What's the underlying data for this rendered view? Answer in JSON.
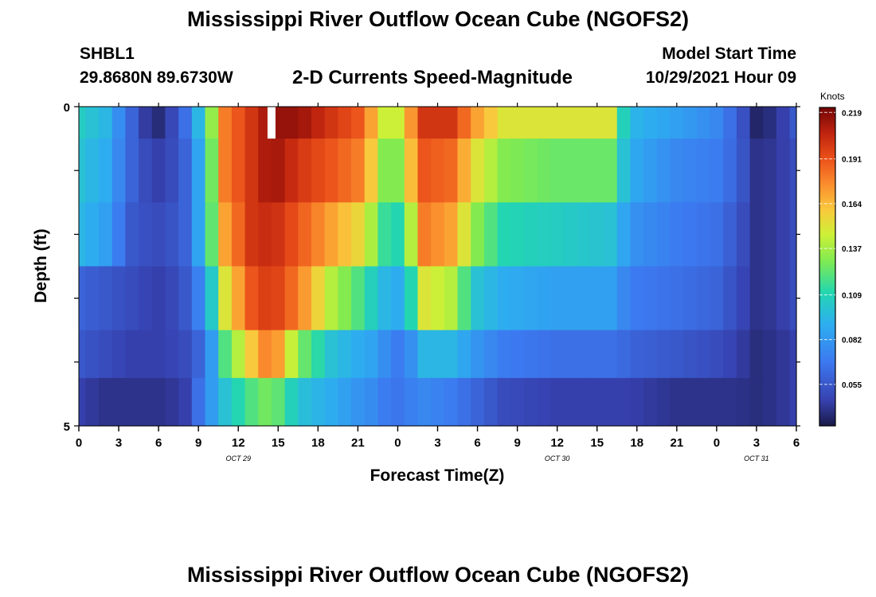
{
  "header": {
    "title": "Mississippi River Outflow Ocean Cube (NGOFS2)",
    "station": "SHBL1",
    "coordinates": "29.8680N  89.6730W",
    "subtitle": "2-D Currents Speed-Magnitude",
    "model_label": "Model Start Time",
    "model_start": "10/29/2021 Hour 09"
  },
  "footer": {
    "title": "Mississippi River Outflow Ocean Cube (NGOFS2)"
  },
  "chart_data": {
    "type": "heatmap",
    "title": "2-D Currents Speed-Magnitude",
    "xlabel": "Forecast Time(Z)",
    "ylabel": "Depth (ft)",
    "x_tick_labels": [
      "0",
      "3",
      "6",
      "9",
      "12",
      "15",
      "18",
      "21",
      "0",
      "3",
      "6",
      "9",
      "12",
      "15",
      "18",
      "21",
      "0",
      "3",
      "6"
    ],
    "date_labels": [
      {
        "label": "OCT 29",
        "hour": 12
      },
      {
        "label": "OCT 30",
        "hour": 36
      },
      {
        "label": "OCT 31",
        "hour": 51
      }
    ],
    "x_range_hours": [
      0,
      54
    ],
    "y_ticks": [
      "0",
      "5"
    ],
    "ylim": [
      0,
      5
    ],
    "colorbar": {
      "label": "Knots",
      "ticks": [
        "0.219",
        "0.191",
        "0.164",
        "0.137",
        "0.109",
        "0.082",
        "0.055"
      ],
      "range": [
        0.03,
        0.222
      ]
    },
    "depth_layers": [
      0,
      1,
      2,
      3,
      4,
      4.5
    ],
    "keypoints": [
      {
        "hour": 0,
        "values": [
          0.105,
          0.1,
          0.095,
          0.06,
          0.055,
          0.045
        ]
      },
      {
        "hour": 2,
        "values": [
          0.095,
          0.09,
          0.085,
          0.055,
          0.05,
          0.04
        ]
      },
      {
        "hour": 4,
        "values": [
          0.06,
          0.06,
          0.055,
          0.05,
          0.045,
          0.04
        ]
      },
      {
        "hour": 5.5,
        "values": [
          0.035,
          0.045,
          0.05,
          0.045,
          0.045,
          0.04
        ]
      },
      {
        "hour": 6.5,
        "values": [
          0.04,
          0.045,
          0.05,
          0.045,
          0.045,
          0.04
        ]
      },
      {
        "hour": 8,
        "values": [
          0.065,
          0.06,
          0.06,
          0.055,
          0.05,
          0.045
        ]
      },
      {
        "hour": 9.5,
        "values": [
          0.11,
          0.1,
          0.1,
          0.08,
          0.065,
          0.075
        ]
      },
      {
        "hour": 11,
        "values": [
          0.18,
          0.18,
          0.17,
          0.15,
          0.12,
          0.1
        ]
      },
      {
        "hour": 13,
        "values": [
          0.2,
          0.2,
          0.2,
          0.19,
          0.16,
          0.12
        ]
      },
      {
        "hour": 14.5,
        "values": [
          0.215,
          0.215,
          0.205,
          0.2,
          0.185,
          0.13
        ]
      },
      {
        "hour": 16.5,
        "values": [
          0.215,
          0.2,
          0.19,
          0.18,
          0.13,
          0.1
        ]
      },
      {
        "hour": 19,
        "values": [
          0.2,
          0.19,
          0.17,
          0.14,
          0.1,
          0.09
        ]
      },
      {
        "hour": 21,
        "values": [
          0.19,
          0.18,
          0.155,
          0.12,
          0.09,
          0.08
        ]
      },
      {
        "hour": 22.5,
        "values": [
          0.16,
          0.15,
          0.13,
          0.1,
          0.085,
          0.075
        ]
      },
      {
        "hour": 23.5,
        "values": [
          0.13,
          0.11,
          0.1,
          0.09,
          0.07,
          0.065
        ]
      },
      {
        "hour": 24.5,
        "values": [
          0.16,
          0.15,
          0.12,
          0.09,
          0.07,
          0.07
        ]
      },
      {
        "hour": 26,
        "values": [
          0.2,
          0.19,
          0.18,
          0.15,
          0.095,
          0.075
        ]
      },
      {
        "hour": 28,
        "values": [
          0.2,
          0.185,
          0.17,
          0.14,
          0.095,
          0.07
        ]
      },
      {
        "hour": 30,
        "values": [
          0.17,
          0.15,
          0.13,
          0.1,
          0.08,
          0.06
        ]
      },
      {
        "hour": 32,
        "values": [
          0.15,
          0.13,
          0.11,
          0.09,
          0.07,
          0.05
        ]
      },
      {
        "hour": 36,
        "values": [
          0.15,
          0.125,
          0.105,
          0.085,
          0.065,
          0.045
        ]
      },
      {
        "hour": 40,
        "values": [
          0.15,
          0.125,
          0.1,
          0.085,
          0.065,
          0.045
        ]
      },
      {
        "hour": 40.5,
        "values": [
          0.12,
          0.11,
          0.095,
          0.08,
          0.065,
          0.045
        ]
      },
      {
        "hour": 41.5,
        "values": [
          0.095,
          0.09,
          0.08,
          0.07,
          0.06,
          0.045
        ]
      },
      {
        "hour": 45,
        "values": [
          0.085,
          0.075,
          0.07,
          0.065,
          0.055,
          0.04
        ]
      },
      {
        "hour": 48,
        "values": [
          0.075,
          0.07,
          0.065,
          0.06,
          0.05,
          0.04
        ]
      },
      {
        "hour": 49.5,
        "values": [
          0.06,
          0.06,
          0.055,
          0.05,
          0.045,
          0.04
        ]
      },
      {
        "hour": 51,
        "values": [
          0.035,
          0.04,
          0.04,
          0.04,
          0.038,
          0.038
        ]
      },
      {
        "hour": 52.5,
        "values": [
          0.04,
          0.042,
          0.042,
          0.042,
          0.04,
          0.04
        ]
      },
      {
        "hour": 54,
        "values": [
          0.055,
          0.05,
          0.05,
          0.05,
          0.045,
          0.045
        ]
      }
    ],
    "missing_cells": [
      {
        "hour": 14.5,
        "layer": 0
      }
    ]
  }
}
